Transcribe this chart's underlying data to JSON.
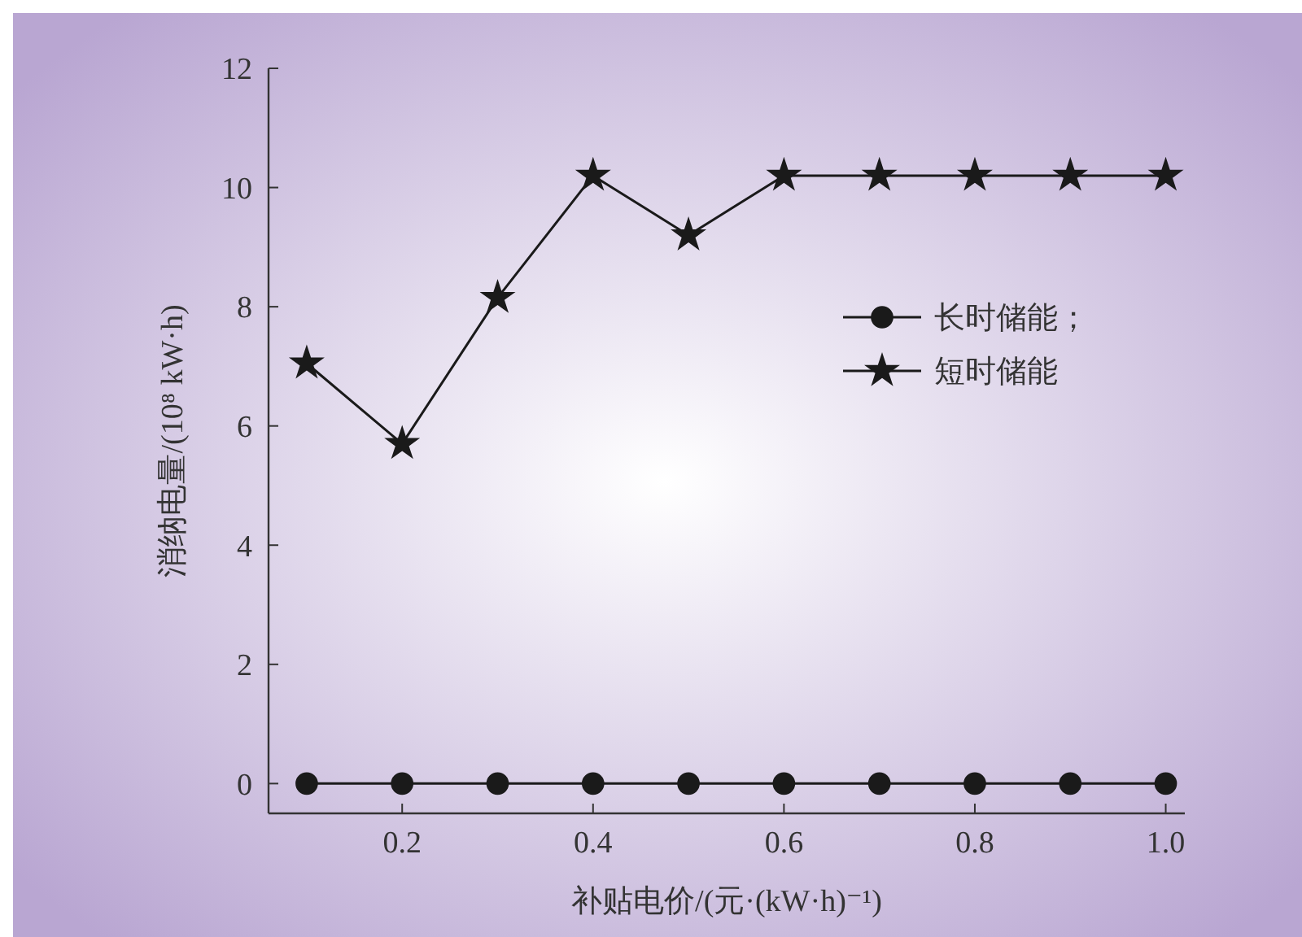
{
  "chart_data": {
    "type": "line",
    "xlabel": "补贴电价/(元·(kW·h)⁻¹)",
    "ylabel": "消纳电量/(10⁸ kW·h)",
    "x": [
      0.1,
      0.2,
      0.3,
      0.4,
      0.5,
      0.6,
      0.7,
      0.8,
      0.9,
      1.0
    ],
    "xlim": [
      0.06,
      1.02
    ],
    "xticks": [
      0.2,
      0.4,
      0.6,
      {
        "value": 0.8,
        "label": "0.8"
      },
      {
        "value": 1,
        "label": "1.0"
      }
    ],
    "ylim": [
      -0.5,
      12
    ],
    "yticks": [
      0,
      2,
      4,
      6,
      8,
      10,
      12
    ],
    "series": [
      {
        "name": "长时储能；",
        "color": "#1a1a1a",
        "marker": "circle",
        "values": [
          0,
          0,
          0,
          0,
          0,
          0,
          0,
          0,
          0,
          0
        ]
      },
      {
        "name": "短时储能",
        "color": "#1a1a1a",
        "marker": "star",
        "values": [
          7.05,
          5.7,
          8.15,
          10.2,
          9.2,
          10.2,
          10.2,
          10.2,
          10.2,
          10.2
        ]
      }
    ],
    "legend": "right",
    "grid": false,
    "line_style": "solid"
  }
}
